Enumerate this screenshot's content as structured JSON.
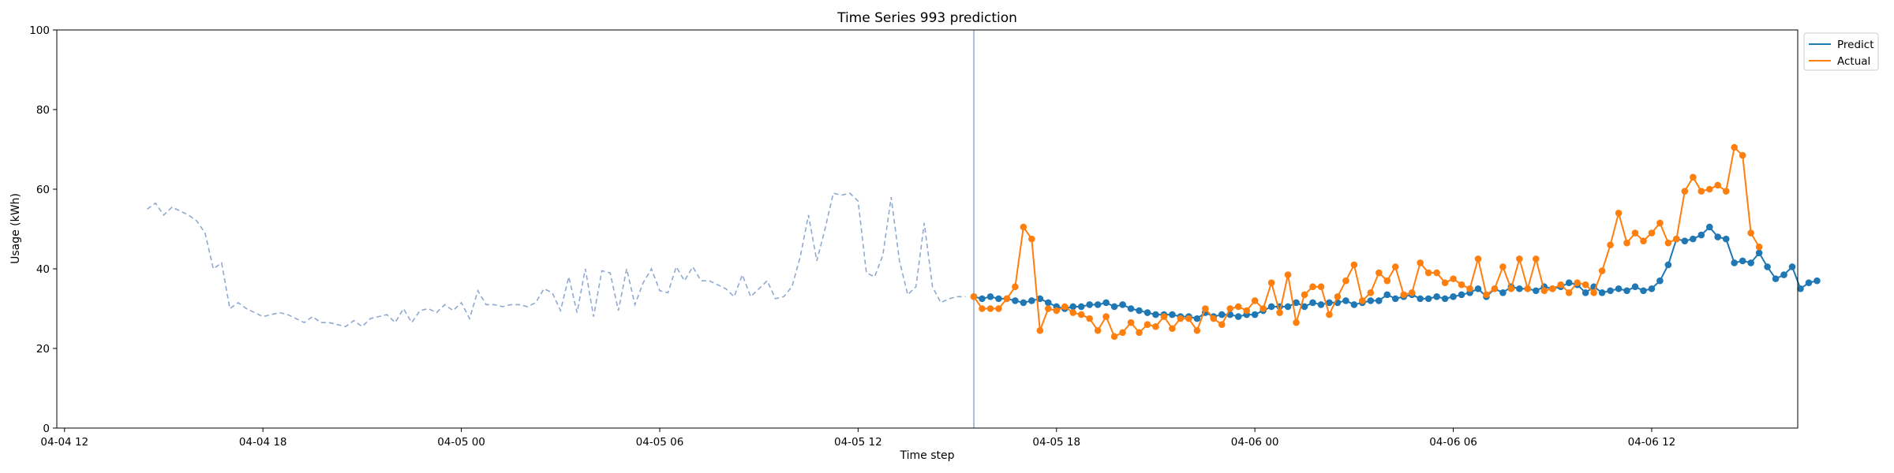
{
  "chart_data": {
    "type": "line",
    "title": "Time Series 993 prediction",
    "xlabel": "Time step",
    "ylabel": "Usage (kWh)",
    "xlim": [
      "2024-04-04T11:46",
      "2024-04-06T16:25"
    ],
    "ylim": [
      0,
      100
    ],
    "yticks": [
      0,
      20,
      40,
      60,
      80,
      100
    ],
    "xticks": [
      {
        "t": "2024-04-04T12:00",
        "label": "04-04 12"
      },
      {
        "t": "2024-04-04T18:00",
        "label": "04-04 18"
      },
      {
        "t": "2024-04-05T00:00",
        "label": "04-05 00"
      },
      {
        "t": "2024-04-05T06:00",
        "label": "04-05 06"
      },
      {
        "t": "2024-04-05T12:00",
        "label": "04-05 12"
      },
      {
        "t": "2024-04-05T18:00",
        "label": "04-05 18"
      },
      {
        "t": "2024-04-06T00:00",
        "label": "04-06 00"
      },
      {
        "t": "2024-04-06T06:00",
        "label": "04-06 06"
      },
      {
        "t": "2024-04-06T12:00",
        "label": "04-06 12"
      }
    ],
    "grid": false,
    "legend_position": "outside-top-right",
    "interval_minutes": 15,
    "history": {
      "start": "2024-04-04T14:30",
      "color": "#8fa9cf",
      "style": "dashed",
      "values": [
        55,
        56.5,
        53.5,
        55.5,
        54.5,
        53.5,
        52,
        49,
        40,
        41.5,
        30,
        31.5,
        30,
        29,
        28,
        28.5,
        29,
        28.5,
        27.5,
        26.5,
        28,
        26.5,
        26.5,
        26,
        25.5,
        27,
        25.5,
        27.5,
        28,
        28.5,
        26.5,
        30,
        26.5,
        29.5,
        30,
        29,
        31,
        29.5,
        31.5,
        27.5,
        34.5,
        31,
        31,
        30.5,
        31,
        31,
        30.5,
        31.5,
        35,
        34,
        29.5,
        38,
        29,
        40,
        28,
        39.5,
        39,
        29.5,
        40,
        31,
        36.5,
        40,
        34.5,
        34,
        40.5,
        37,
        40.5,
        37,
        37,
        36,
        35,
        33,
        38.5,
        33,
        35,
        37,
        32.5,
        33,
        35.5,
        43,
        53.5,
        42,
        50,
        59,
        58.5,
        59,
        57,
        39,
        38,
        43.5,
        58,
        42,
        33.5,
        35.5,
        51.5,
        35.5,
        31.5,
        32.5,
        33,
        33
      ]
    },
    "forecast_start": "2024-04-05T15:30",
    "series": [
      {
        "name": "Predict",
        "color": "#1f77b4",
        "start": "2024-04-05T15:30",
        "values": [
          33,
          32.5,
          33,
          32.5,
          32.5,
          32,
          31.5,
          32,
          32.5,
          31.5,
          30.5,
          30,
          30.5,
          30.5,
          31,
          31,
          31.5,
          30.5,
          31,
          30,
          29.5,
          29,
          28.5,
          28.5,
          28.5,
          28,
          28,
          27.5,
          29,
          28,
          28.5,
          28.5,
          28,
          28.5,
          28.5,
          29.5,
          30.5,
          30.5,
          30.5,
          31.5,
          30.5,
          31.5,
          31,
          31.5,
          31.5,
          32,
          31,
          31.5,
          32,
          32,
          33.5,
          32.5,
          33,
          33.5,
          32.5,
          32.5,
          33,
          32.5,
          33,
          33.5,
          34,
          35,
          33,
          35,
          34,
          35.5,
          35,
          35,
          34.5,
          35.5,
          35,
          35.5,
          36.5,
          36,
          34,
          35.5,
          34,
          34.5,
          35,
          34.5,
          35.5,
          34.5,
          35,
          37,
          41,
          47.5,
          47,
          47.5,
          48.5,
          50.5,
          48,
          47.5,
          41.5,
          42,
          41.5,
          44,
          40.5,
          37.5,
          38.5,
          40.5,
          35,
          36.5,
          37
        ]
      },
      {
        "name": "Actual",
        "color": "#ff7f0e",
        "start": "2024-04-05T15:30",
        "values": [
          33,
          30,
          30,
          30,
          32.5,
          35.5,
          50.5,
          47.5,
          24.5,
          30,
          29.5,
          30.5,
          29,
          28.5,
          27.5,
          24.5,
          28,
          23,
          24,
          26.5,
          24,
          26,
          25.5,
          28,
          25,
          27.5,
          27.5,
          24.5,
          30,
          27.5,
          26,
          30,
          30.5,
          29.5,
          32,
          30,
          36.5,
          29,
          38.5,
          26.5,
          33.5,
          35.5,
          35.5,
          28.5,
          33,
          37,
          41,
          32,
          34,
          39,
          37,
          40.5,
          33.5,
          34,
          41.5,
          39,
          39,
          36.5,
          37.5,
          36,
          35,
          42.5,
          33.5,
          35,
          40.5,
          35,
          42.5,
          35,
          42.5,
          34.5,
          35,
          36,
          34,
          36.5,
          36,
          34,
          39.5,
          46,
          54,
          46.5,
          49,
          47,
          49,
          51.5,
          46.5,
          47.5,
          59.5,
          63,
          59.5,
          60,
          61,
          59.5,
          70.5,
          68.5,
          49,
          45.5
        ]
      }
    ]
  }
}
